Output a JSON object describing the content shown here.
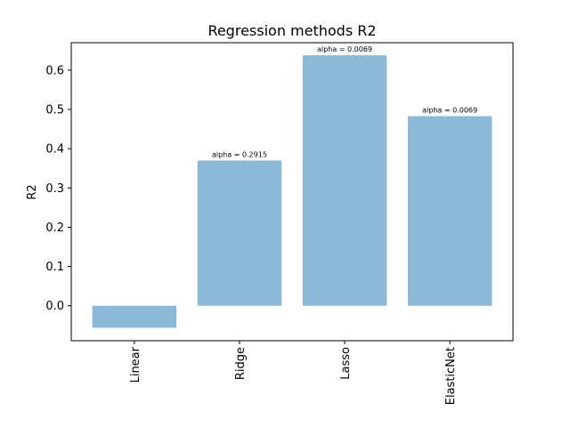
{
  "chart_data": {
    "type": "bar",
    "title": "Regression methods R2",
    "xlabel": "",
    "ylabel": "R2",
    "categories": [
      "Linear",
      "Ridge",
      "Lasso",
      "ElasticNet"
    ],
    "values": [
      -0.056,
      0.37,
      0.638,
      0.483
    ],
    "annotations": [
      "",
      "alpha = 0.2915",
      "alpha = 0.0069",
      "alpha = 0.0069"
    ],
    "ylim": [
      -0.089,
      0.67
    ],
    "yticks": [
      0.0,
      0.1,
      0.2,
      0.3,
      0.4,
      0.5,
      0.6
    ],
    "ytick_labels": [
      "0.0",
      "0.1",
      "0.2",
      "0.3",
      "0.4",
      "0.5",
      "0.6"
    ],
    "bar_color": "#8db9d9",
    "grid": false,
    "xtick_rotation": "vertical"
  }
}
